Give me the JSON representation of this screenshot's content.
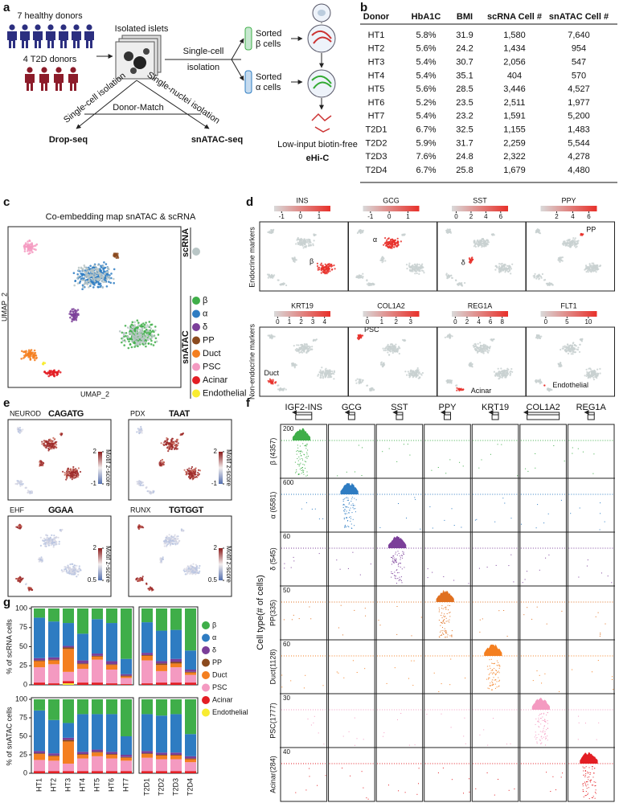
{
  "panel_a": {
    "label": "a",
    "healthy": "7 healthy donors",
    "t2d": "4 T2D donors",
    "islets": "Isolated islets",
    "single_cell": [
      "Single-cell",
      "isolation"
    ],
    "sorted_beta": [
      "Sorted",
      "β cells"
    ],
    "sorted_alpha": [
      "Sorted",
      "α cells"
    ],
    "sc_isolation": "Single-cell isolation",
    "sn_isolation": "Single-nuclei isolation",
    "donor_match": "Donor-Match",
    "dropseq": "Drop-seq",
    "snatac": "snATAC-seq",
    "hic": [
      "Low-input biotin-free",
      "eHi-C"
    ]
  },
  "panel_b": {
    "label": "b",
    "t2d_color": "#e8251f",
    "header": [
      "Donor",
      "HbA1C",
      "BMI",
      "scRNA Cell #",
      "snATAC Cell #"
    ],
    "rows": [
      [
        "HT1",
        "5.8%",
        "31.9",
        "1,580",
        "7,640"
      ],
      [
        "HT2",
        "5.6%",
        "24.2",
        "1,434",
        "954"
      ],
      [
        "HT3",
        "5.4%",
        "30.7",
        "2,056",
        "547"
      ],
      [
        "HT4",
        "5.4%",
        "35.1",
        "404",
        "570"
      ],
      [
        "HT5",
        "5.6%",
        "28.5",
        "3,446",
        "4,527"
      ],
      [
        "HT6",
        "5.2%",
        "23.5",
        "2,511",
        "1,977"
      ],
      [
        "HT7",
        "5.4%",
        "23.2",
        "1,591",
        "5,200"
      ],
      [
        "T2D1",
        "6.7%",
        "32.5",
        "1,155",
        "1,483"
      ],
      [
        "T2D2",
        "5.9%",
        "31.7",
        "2,259",
        "5,544"
      ],
      [
        "T2D3",
        "7.6%",
        "24.8",
        "2,322",
        "4,278"
      ],
      [
        "T2D4",
        "6.7%",
        "25.8",
        "1,679",
        "4,480"
      ]
    ]
  },
  "panel_c": {
    "label": "c",
    "title": "Co-embedding map snATAC & scRNA",
    "ylabel": "UMAP_2",
    "xlabel": "UMAP_2",
    "scrna": {
      "name": "scRNA",
      "color": "#b9c6c6"
    },
    "snatac": "snATAC",
    "legend": [
      {
        "name": "β",
        "color": "#3fae49"
      },
      {
        "name": "α",
        "color": "#2e7cc2"
      },
      {
        "name": "δ",
        "color": "#7b3f99"
      },
      {
        "name": "PP",
        "color": "#8b4a1e"
      },
      {
        "name": "Duct",
        "color": "#f47f20"
      },
      {
        "name": "PSC",
        "color": "#f49ac1"
      },
      {
        "name": "Acinar",
        "color": "#e31e24"
      },
      {
        "name": "Endothelial",
        "color": "#f8ec31"
      }
    ]
  },
  "panel_d": {
    "label": "d",
    "rows": [
      "Endocrine markers",
      "Non-endocrine markers"
    ],
    "color": "#e8302a",
    "markers": [
      {
        "gene": "INS",
        "ticks": [
          -1,
          0,
          1
        ],
        "lim": [
          -1.4,
          1.6
        ],
        "label": "β"
      },
      {
        "gene": "GCG",
        "ticks": [
          -1,
          0,
          1
        ],
        "lim": [
          -1.4,
          1.6
        ],
        "label": "α"
      },
      {
        "gene": "SST",
        "ticks": [
          0,
          2,
          4,
          6
        ],
        "lim": [
          -0.6,
          7
        ],
        "label": "δ"
      },
      {
        "gene": "PPY",
        "ticks": [
          2,
          4,
          6
        ],
        "lim": [
          0,
          7
        ],
        "label": "PP"
      },
      {
        "gene": "KRT19",
        "ticks": [
          0,
          1,
          2,
          3,
          4
        ],
        "lim": [
          -0.3,
          4.5
        ],
        "label": "Duct"
      },
      {
        "gene": "COL1A2",
        "ticks": [
          0,
          1,
          2,
          3
        ],
        "lim": [
          -0.3,
          3.6
        ],
        "label": "PSC"
      },
      {
        "gene": "REG1A",
        "ticks": [
          0,
          2,
          4,
          6,
          8
        ],
        "lim": [
          -0.6,
          9
        ],
        "label": "Acinar"
      },
      {
        "gene": "FLT1",
        "ticks": [
          0,
          5,
          10
        ],
        "lim": [
          -1.2,
          12
        ],
        "label": "Endothelial"
      }
    ]
  },
  "panel_e": {
    "label": "e",
    "colorbar_label": "Motif z-score",
    "motifs": [
      {
        "name": "NEUROD",
        "logo": "CAGATG",
        "ticks": [
          2,
          -1
        ]
      },
      {
        "name": "PDX",
        "logo": "TAAT",
        "ticks": [
          2,
          -1
        ]
      },
      {
        "name": "EHF",
        "logo": "GGAA",
        "ticks": [
          2,
          0.5
        ]
      },
      {
        "name": "RUNX",
        "logo": "TGTGGT",
        "ticks": [
          2,
          0.5
        ]
      }
    ]
  },
  "panel_f": {
    "label": "f",
    "ylabel": "Cell type(# of cells)",
    "genes": [
      "IGF2-INS",
      "GCG",
      "SST",
      "PPY",
      "KRT19",
      "COL1A2",
      "REG1A"
    ],
    "rows": [
      {
        "name": "β (4357)",
        "color": "#3fae49",
        "max": 200
      },
      {
        "name": "α (6581)",
        "color": "#2e7cc2",
        "max": 600
      },
      {
        "name": "δ (545)",
        "color": "#7b3f99",
        "max": 60
      },
      {
        "name": "PP(335)",
        "color": "#e07020",
        "max": 50
      },
      {
        "name": "Duct(1128)",
        "color": "#f47f20",
        "max": 60
      },
      {
        "name": "PSC(1777)",
        "color": "#f49ac1",
        "max": 30
      },
      {
        "name": "Acinar(284)",
        "color": "#e31e24",
        "max": 40
      }
    ]
  },
  "panel_g": {
    "label": "g"
  },
  "chart_data": [
    {
      "type": "bar",
      "stacked": true,
      "ylabel": "% of scRNA cells",
      "ylim": [
        0,
        100
      ],
      "yticks": [
        0,
        25,
        50,
        75,
        100
      ],
      "series": [
        {
          "name": "Endothelial",
          "color": "#f8ec31",
          "values": [
            0,
            0,
            2,
            0,
            0,
            0,
            0,
            0,
            0,
            0,
            0
          ]
        },
        {
          "name": "Acinar",
          "color": "#e31e24",
          "values": [
            3,
            2,
            3,
            3,
            3,
            2,
            1,
            2,
            3,
            3,
            3
          ]
        },
        {
          "name": "PSC",
          "color": "#f49ac1",
          "values": [
            20,
            25,
            12,
            18,
            30,
            18,
            8,
            30,
            15,
            20,
            10
          ]
        },
        {
          "name": "Duct",
          "color": "#f47f20",
          "values": [
            8,
            5,
            30,
            6,
            4,
            6,
            2,
            6,
            8,
            5,
            3
          ]
        },
        {
          "name": "PP",
          "color": "#8b4a1e",
          "values": [
            1,
            1,
            2,
            1,
            1,
            1,
            1,
            1,
            2,
            2,
            1
          ]
        },
        {
          "name": "δ",
          "color": "#7b3f99",
          "values": [
            3,
            3,
            2,
            4,
            3,
            4,
            2,
            3,
            3,
            4,
            3
          ]
        },
        {
          "name": "α",
          "color": "#2e7cc2",
          "values": [
            53,
            47,
            30,
            35,
            45,
            50,
            20,
            40,
            40,
            38,
            25
          ]
        },
        {
          "name": "β",
          "color": "#3fae49",
          "values": [
            12,
            17,
            19,
            33,
            14,
            19,
            66,
            18,
            29,
            28,
            55
          ]
        }
      ]
    },
    {
      "type": "bar",
      "stacked": true,
      "ylabel": "% of snATAC cells",
      "ylim": [
        0,
        100
      ],
      "yticks": [
        0,
        25,
        50,
        75,
        100
      ],
      "categories": [
        "HT1",
        "HT2",
        "HT3",
        "HT4",
        "HT5",
        "HT6",
        "HT7",
        "T2D1",
        "T2D2",
        "T2D3",
        "T2D4"
      ],
      "series": [
        {
          "color": "#f8ec31",
          "values": [
            0,
            0,
            0,
            0,
            0,
            0,
            0,
            0,
            0,
            0,
            0
          ]
        },
        {
          "color": "#e31e24",
          "values": [
            3,
            3,
            3,
            3,
            3,
            3,
            3,
            3,
            3,
            3,
            3
          ]
        },
        {
          "color": "#f49ac1",
          "values": [
            15,
            14,
            10,
            17,
            20,
            17,
            14,
            18,
            16,
            16,
            12
          ]
        },
        {
          "color": "#f47f20",
          "values": [
            8,
            6,
            30,
            5,
            5,
            5,
            4,
            5,
            5,
            5,
            4
          ]
        },
        {
          "color": "#8b4a1e",
          "values": [
            1,
            1,
            2,
            1,
            1,
            1,
            1,
            1,
            1,
            1,
            1
          ]
        },
        {
          "color": "#7b3f99",
          "values": [
            3,
            3,
            3,
            3,
            3,
            3,
            3,
            3,
            3,
            3,
            3
          ]
        },
        {
          "color": "#2e7cc2",
          "values": [
            55,
            45,
            20,
            51,
            48,
            51,
            25,
            50,
            50,
            52,
            30
          ]
        },
        {
          "color": "#3fae49",
          "values": [
            15,
            28,
            32,
            20,
            20,
            20,
            50,
            20,
            22,
            20,
            47
          ]
        }
      ]
    }
  ]
}
